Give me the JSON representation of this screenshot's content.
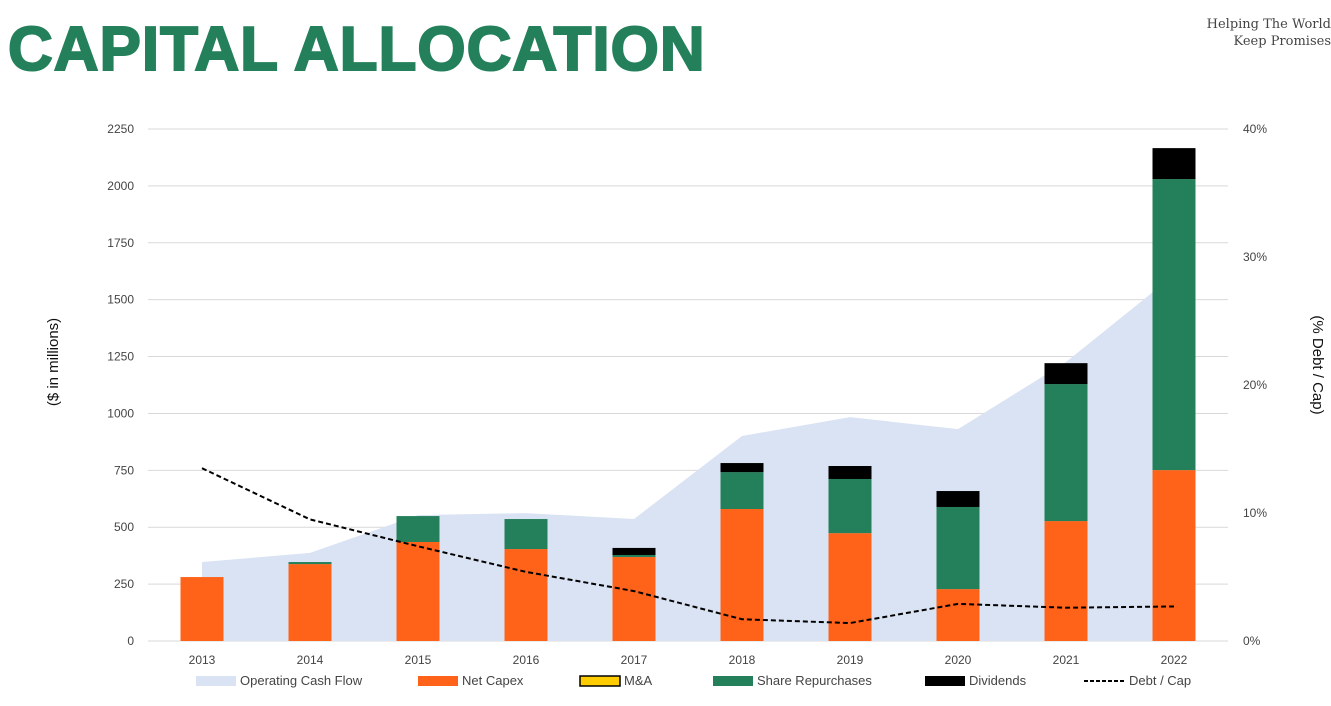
{
  "header": {
    "title": "CAPITAL ALLOCATION",
    "tagline_line1": "Helping The World",
    "tagline_line2": "Keep Promises"
  },
  "chart_data": {
    "type": "bar",
    "subtype": "stacked bar with area and line on secondary axis",
    "title": "",
    "ylabel": "($ in millions)",
    "y2label": "(% Debt / Cap)",
    "ylim": [
      0,
      2250
    ],
    "yticks": [
      0,
      250,
      500,
      750,
      1000,
      1250,
      1500,
      1750,
      2000,
      2250
    ],
    "y2lim": [
      0,
      40
    ],
    "y2ticks": [
      "0%",
      "10%",
      "20%",
      "30%",
      "40%"
    ],
    "grid": true,
    "legend_placement": "bottom",
    "categories": [
      "2013",
      "2014",
      "2015",
      "2016",
      "2017",
      "2018",
      "2019",
      "2020",
      "2021",
      "2022"
    ],
    "series": [
      {
        "name": "Operating Cash Flow",
        "kind": "area",
        "axis": "left",
        "color": "#dae3f3",
        "values": [
          347,
          387,
          553,
          562,
          536,
          901,
          984,
          931,
          1226,
          1608
        ]
      },
      {
        "name": "Net Capex",
        "kind": "bar",
        "axis": "left",
        "color": "#ff6319",
        "values": [
          281,
          338,
          435,
          404,
          369,
          580,
          474,
          228,
          527,
          751
        ]
      },
      {
        "name": "M&A",
        "kind": "bar",
        "axis": "left",
        "color": "#ffcc00",
        "values": [
          0,
          0,
          0,
          0,
          0,
          0,
          0,
          0,
          0,
          0
        ]
      },
      {
        "name": "Share Repurchases",
        "kind": "bar",
        "axis": "left",
        "color": "#23805a",
        "values": [
          0,
          9,
          114,
          132,
          9,
          162,
          238,
          361,
          602,
          1279
        ]
      },
      {
        "name": "Dividends",
        "kind": "bar",
        "axis": "left",
        "color": "#000000",
        "values": [
          0,
          0,
          0,
          0,
          31,
          40,
          57,
          70,
          92,
          136
        ]
      },
      {
        "name": "Debt / Cap",
        "kind": "line",
        "axis": "right",
        "style": "dashed",
        "color": "#000000",
        "values": [
          13.5,
          9.5,
          7.4,
          5.4,
          3.9,
          1.7,
          1.4,
          2.9,
          2.6,
          2.7
        ]
      }
    ]
  }
}
